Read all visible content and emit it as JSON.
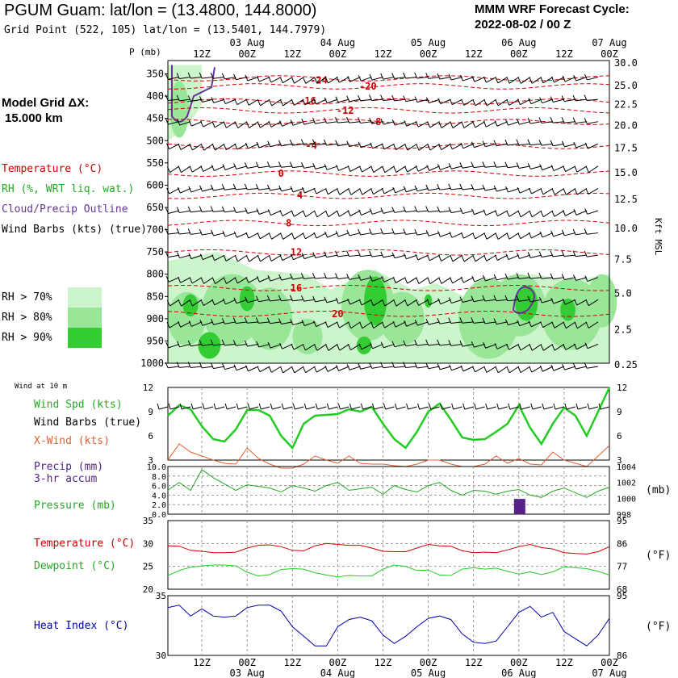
{
  "header": {
    "station_title": "PGUM Guam:  lat/lon = (13.4800, 144.8000)",
    "grid_point": "Grid Point (522, 105) lat/lon = (13.5401, 144.7979)",
    "cycle_title": "MMM WRF Forecast Cycle:",
    "cycle_value": "2022-08-02 / 00  Z"
  },
  "time_axis": {
    "hour_labels": [
      "12Z",
      "00Z",
      "12Z",
      "00Z",
      "12Z",
      "00Z",
      "12Z",
      "00Z",
      "12Z",
      "00Z"
    ],
    "hour_offsets": [
      12,
      24,
      36,
      48,
      60,
      72,
      84,
      96,
      108,
      120
    ],
    "date_labels": [
      "03 Aug",
      "04 Aug",
      "05 Aug",
      "06 Aug",
      "07 Aug"
    ],
    "date_offsets": [
      24,
      48,
      72,
      96,
      120
    ],
    "range_hours": [
      3,
      120
    ]
  },
  "left_panel": {
    "model_grid_label": "Model Grid ΔX:",
    "model_grid_value": "15.000 km",
    "legend_temperature": "Temperature (°C)",
    "legend_rh": "RH (%, WRT liq. wat.)",
    "legend_cloud": "Cloud/Precip Outline",
    "legend_wind": "Wind Barbs (kts) (true)",
    "rh_70": "RH > 70%",
    "rh_80": "RH > 80%",
    "rh_90": "RH > 90%"
  },
  "colors": {
    "temperature": "#cc0000",
    "rh70": "#ccf5cc",
    "rh80": "#99e699",
    "rh90": "#33cc33",
    "cloud": "#663399",
    "wind_speed": "#22cc22",
    "crosswind": "#e06030",
    "pressure": "#22aa22",
    "precip": "#552288",
    "dewpoint": "#22cc22",
    "heat_index": "#0000aa"
  },
  "chart_data": [
    {
      "type": "heatmap",
      "name": "upper-air cross-section",
      "pressure_label": "P (mb)",
      "height_label": "Kft MSL",
      "pressure_levels": [
        350,
        400,
        450,
        500,
        550,
        600,
        650,
        700,
        750,
        800,
        850,
        900,
        950,
        1000
      ],
      "height_labels": [
        "30.0",
        "25.0",
        "22.5",
        "20.0",
        "17.5",
        "15.0",
        "12.5",
        "10.0",
        "7.5",
        "5.0",
        "2.5",
        "0.25"
      ],
      "height_values": [
        30.0,
        25.0,
        22.5,
        20.0,
        17.5,
        15.0,
        12.5,
        10.0,
        7.5,
        5.0,
        2.5,
        0.25
      ],
      "ylim_mb": [
        320,
        1000
      ],
      "temperature_labels": [
        {
          "text": "-24",
          "t": 43,
          "p": 364
        },
        {
          "text": "-20",
          "t": 56,
          "p": 378
        },
        {
          "text": "-16",
          "t": 40,
          "p": 411
        },
        {
          "text": "-12",
          "t": 50,
          "p": 432
        },
        {
          "text": "-8",
          "t": 58,
          "p": 458
        },
        {
          "text": "-4",
          "t": 41,
          "p": 511
        },
        {
          "text": "0",
          "t": 33,
          "p": 574
        },
        {
          "text": "4",
          "t": 38,
          "p": 623
        },
        {
          "text": "8",
          "t": 35,
          "p": 685
        },
        {
          "text": "12",
          "t": 37,
          "p": 751
        },
        {
          "text": "16",
          "t": 37,
          "p": 831
        },
        {
          "text": "20",
          "t": 48,
          "p": 889
        }
      ]
    },
    {
      "type": "line",
      "name": "10 m wind",
      "wind_title": "Wind at 10 m",
      "legend_speed": "Wind Spd (kts)",
      "legend_barbs": "Wind Barbs (true)",
      "legend_crosswind": "X-Wind (kts)",
      "ylim": [
        3,
        12
      ],
      "ytick_labels": [
        "12",
        "9",
        "6",
        "3"
      ],
      "ytick_values": [
        12,
        9,
        6,
        3
      ],
      "right_tick_labels": [
        "12",
        "9",
        "6",
        "3"
      ],
      "x": [
        3,
        6,
        9,
        12,
        15,
        18,
        21,
        24,
        27,
        30,
        33,
        36,
        39,
        42,
        45,
        48,
        51,
        54,
        57,
        60,
        63,
        66,
        69,
        72,
        75,
        78,
        81,
        84,
        87,
        90,
        93,
        96,
        99,
        102,
        105,
        108,
        111,
        114,
        117,
        120
      ],
      "wind_speed": [
        8.5,
        9.8,
        9.3,
        7.2,
        5.6,
        5.3,
        6.8,
        9.2,
        9.2,
        8.5,
        6.0,
        4.5,
        7.5,
        8.5,
        8.6,
        8.7,
        9.3,
        9.0,
        9.6,
        7.5,
        5.6,
        4.5,
        6.5,
        9.0,
        10.0,
        8.0,
        5.8,
        5.5,
        5.6,
        6.5,
        7.5,
        9.8,
        7.0,
        5.0,
        7.5,
        9.5,
        8.5,
        6.0,
        9.0,
        12.0
      ],
      "crosswind": [
        3.0,
        5.0,
        4.0,
        3.5,
        3.0,
        2.6,
        2.5,
        4.5,
        3.2,
        2.5,
        2.0,
        2.0,
        2.5,
        3.5,
        3.0,
        2.6,
        3.5,
        2.6,
        2.5,
        2.5,
        2.3,
        2.2,
        2.5,
        3.0,
        3.0,
        2.5,
        2.2,
        2.2,
        2.5,
        3.5,
        2.6,
        3.2,
        2.5,
        2.4,
        4.0,
        3.0,
        2.6,
        2.2,
        3.5,
        4.8
      ]
    },
    {
      "type": "line",
      "name": "precip and pressure",
      "legend_precip": "Precip (mm)",
      "legend_precip_sub": "3-hr accum",
      "legend_pressure": "Pressure (mb)",
      "pressure_unit": "(mb)",
      "precip_ylim": [
        0,
        10
      ],
      "precip_tick_labels": [
        "10.0",
        "8.0",
        "6.0",
        "4.0",
        "2.0",
        "0.0"
      ],
      "precip_tick_values": [
        10,
        8,
        6,
        4,
        2,
        0
      ],
      "pressure_ylim": [
        998,
        1004
      ],
      "pressure_tick_labels": [
        "1004",
        "1002",
        "1000",
        "998"
      ],
      "pressure_tick_values": [
        1004,
        1002,
        1000,
        998
      ],
      "x": [
        3,
        6,
        9,
        12,
        15,
        18,
        21,
        24,
        27,
        30,
        33,
        36,
        39,
        42,
        45,
        48,
        51,
        54,
        57,
        60,
        63,
        66,
        69,
        72,
        75,
        78,
        81,
        84,
        87,
        90,
        93,
        96,
        99,
        102,
        105,
        108,
        111,
        114,
        117,
        120
      ],
      "pressure": [
        1001.0,
        1002.0,
        1001.0,
        1003.6,
        1002.6,
        1001.8,
        1001.0,
        1001.7,
        1001.5,
        1001.3,
        1000.8,
        1001.6,
        1001.3,
        1000.9,
        1001.6,
        1002.0,
        1001.0,
        1001.2,
        1001.4,
        1000.5,
        1001.6,
        1001.1,
        1000.8,
        1001.6,
        1002.0,
        1001.0,
        1000.4,
        1001.0,
        1000.9,
        1000.5,
        1000.9,
        1001.1,
        1000.4,
        1000.1,
        1000.9,
        1001.3,
        1000.7,
        1000.1,
        1000.9,
        1001.4
      ],
      "precip_bar": {
        "x": 96,
        "value": 3.2
      }
    },
    {
      "type": "line",
      "name": "temperature and dewpoint",
      "legend_temperature": "Temperature (°C)",
      "legend_dewpoint": "Dewpoint (°C)",
      "unit_f": "(°F)",
      "ylim": [
        20,
        35
      ],
      "ytick_labels": [
        "35",
        "30",
        "25",
        "20"
      ],
      "ytick_values": [
        35,
        30,
        25,
        20
      ],
      "right_tick_labels": [
        "95",
        "86",
        "77",
        "68"
      ],
      "right_tick_values": [
        95,
        86,
        77,
        68
      ],
      "x": [
        3,
        6,
        9,
        12,
        15,
        18,
        21,
        24,
        27,
        30,
        33,
        36,
        39,
        42,
        45,
        48,
        51,
        54,
        57,
        60,
        63,
        66,
        69,
        72,
        75,
        78,
        81,
        84,
        87,
        90,
        93,
        96,
        99,
        102,
        105,
        108,
        111,
        114,
        117,
        120
      ],
      "temperature": [
        29.5,
        29.4,
        28.5,
        28.3,
        28.0,
        28.0,
        28.1,
        29.0,
        29.6,
        29.7,
        29.3,
        28.5,
        28.4,
        29.5,
        30.0,
        29.8,
        29.6,
        29.6,
        29.0,
        28.3,
        28.2,
        28.2,
        29.0,
        29.8,
        29.5,
        29.4,
        28.4,
        28.0,
        28.1,
        28.0,
        28.6,
        29.3,
        29.8,
        29.1,
        28.8,
        28.0,
        27.8,
        27.7,
        28.2,
        29.3
      ],
      "dewpoint": [
        23.0,
        24.1,
        24.8,
        25.1,
        25.3,
        25.3,
        25.1,
        23.7,
        22.9,
        23.2,
        24.3,
        24.5,
        24.4,
        23.6,
        23.1,
        22.7,
        23.0,
        22.9,
        22.9,
        24.4,
        25.3,
        25.0,
        24.1,
        24.2,
        23.1,
        23.0,
        24.4,
        24.7,
        24.4,
        24.6,
        23.9,
        23.3,
        23.8,
        23.2,
        23.8,
        24.9,
        24.7,
        24.5,
        23.9,
        23.1
      ]
    },
    {
      "type": "line",
      "name": "heat index",
      "legend_heat": "Heat Index (°C)",
      "unit_f": "(°F)",
      "ylim": [
        30,
        35
      ],
      "ytick_labels": [
        "35",
        "30"
      ],
      "ytick_values": [
        35,
        30
      ],
      "right_tick_labels": [
        "95",
        "86"
      ],
      "right_tick_values": [
        95,
        86
      ],
      "x": [
        3,
        6,
        9,
        12,
        15,
        18,
        21,
        24,
        27,
        30,
        33,
        36,
        39,
        42,
        45,
        48,
        51,
        54,
        57,
        60,
        63,
        66,
        69,
        72,
        75,
        78,
        81,
        84,
        87,
        90,
        93,
        96,
        99,
        102,
        105,
        108,
        111,
        114,
        117,
        120
      ],
      "heat_index": [
        34.0,
        34.2,
        33.3,
        33.9,
        33.3,
        33.2,
        33.3,
        34.0,
        34.2,
        34.2,
        33.7,
        32.4,
        31.6,
        30.8,
        30.8,
        32.4,
        33.0,
        33.2,
        32.9,
        31.7,
        31.0,
        31.6,
        32.4,
        33.1,
        33.3,
        33.0,
        31.8,
        31.1,
        31.0,
        31.2,
        32.4,
        33.6,
        34.1,
        33.2,
        33.6,
        32.0,
        31.4,
        30.8,
        31.7,
        33.1
      ]
    }
  ]
}
